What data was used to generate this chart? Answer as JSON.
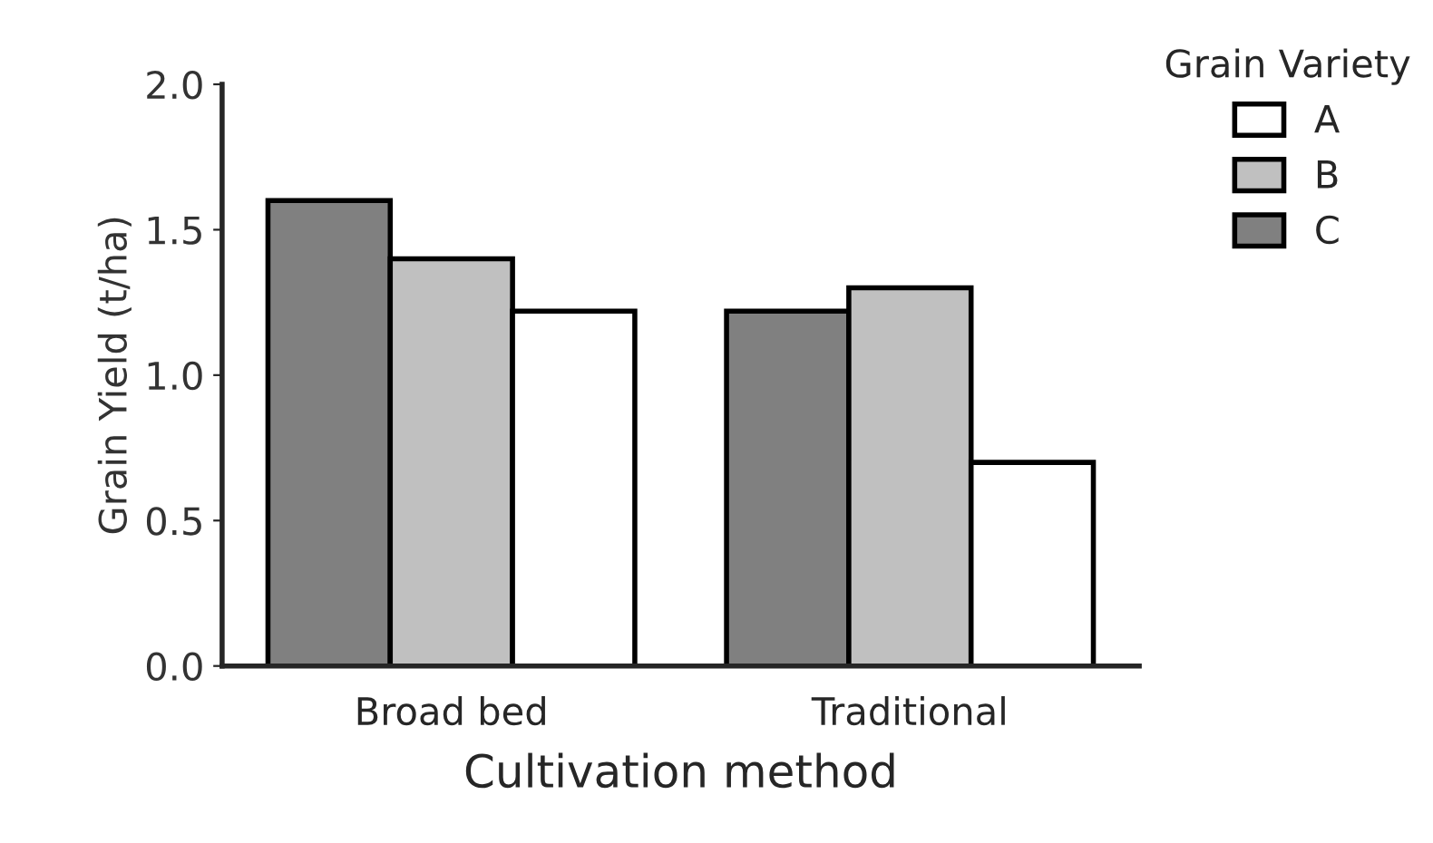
{
  "chart_data": {
    "type": "bar",
    "xlabel": "Cultivation method",
    "ylabel": "Grain Yield (t/ha)",
    "legend_title": "Grain Variety",
    "categories": [
      "Broad bed",
      "Traditional"
    ],
    "series": [
      {
        "name": "C",
        "color": "#808080",
        "values": [
          1.6,
          1.22
        ]
      },
      {
        "name": "B",
        "color": "#c0c0c0",
        "values": [
          1.4,
          1.3
        ]
      },
      {
        "name": "A",
        "color": "#ffffff",
        "values": [
          1.22,
          0.7
        ]
      }
    ],
    "ylim": [
      0,
      2.0
    ],
    "yticks": [
      {
        "value": 0,
        "label": "0.0"
      },
      {
        "value": 0.5,
        "label": "0.5"
      },
      {
        "value": 1.0,
        "label": "1.0"
      },
      {
        "value": 1.5,
        "label": "1.5"
      },
      {
        "value": 2.0,
        "label": "2.0"
      }
    ],
    "grid": false,
    "legend": "top right"
  }
}
